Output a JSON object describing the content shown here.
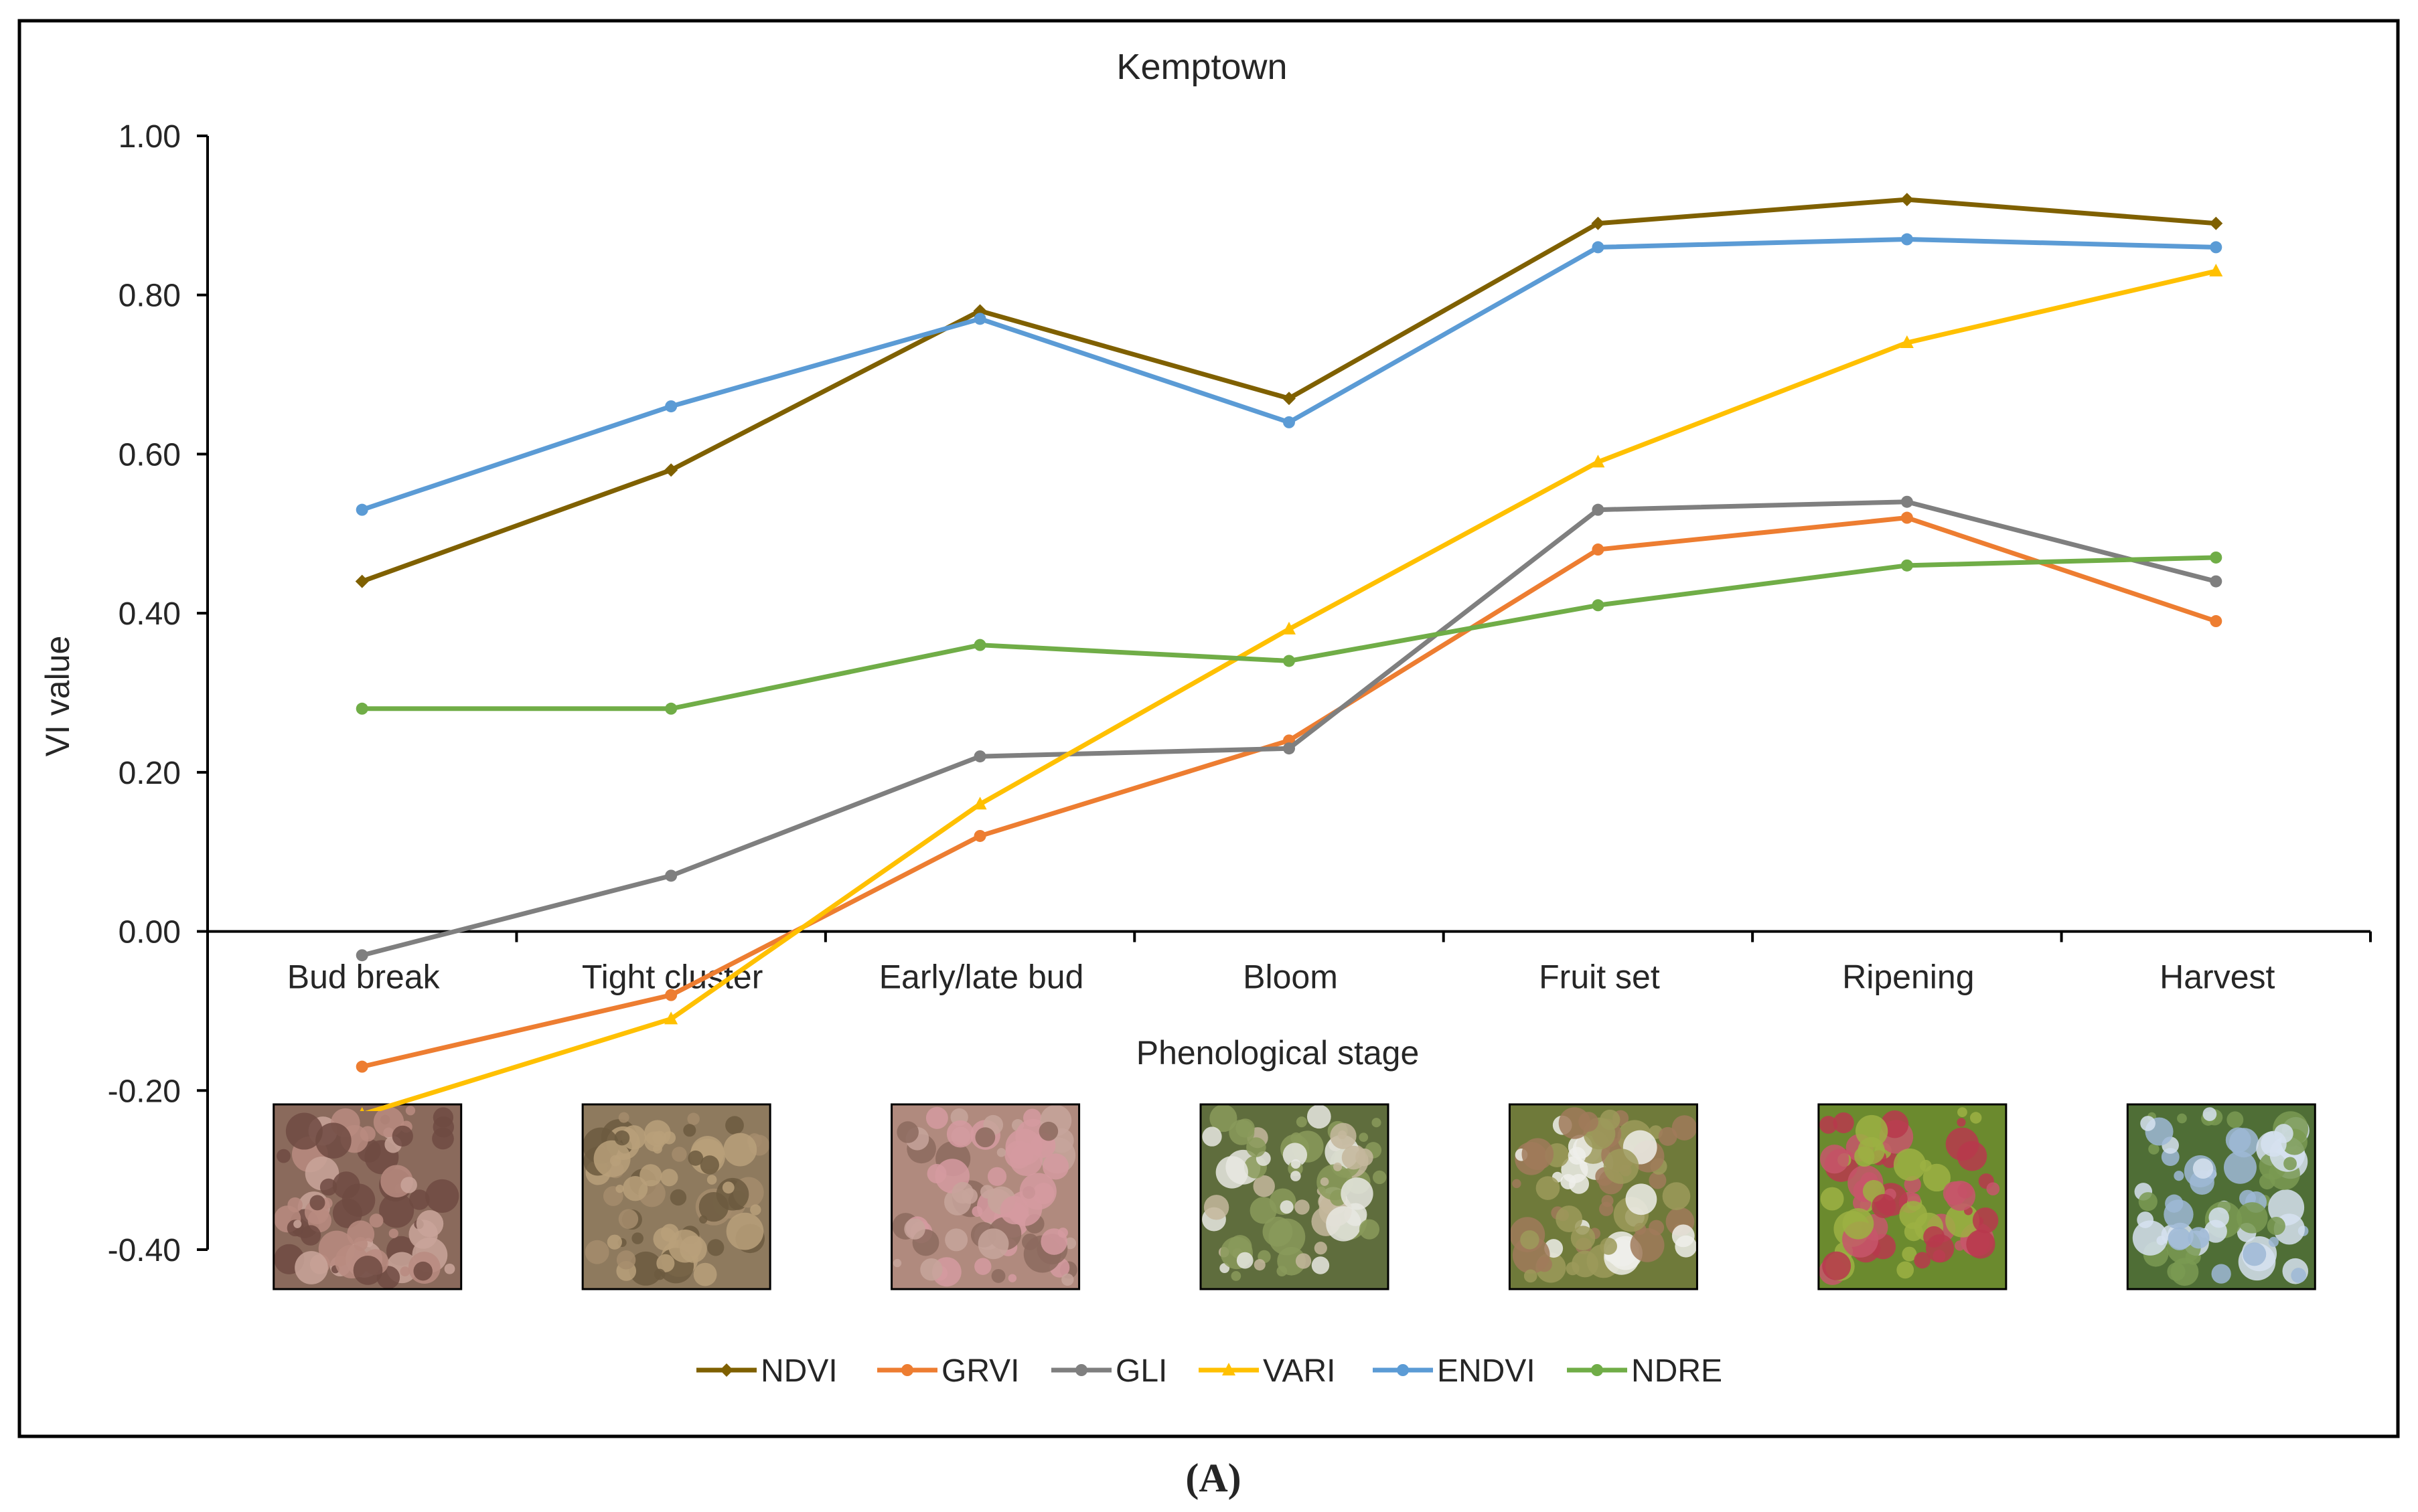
{
  "chart_data": {
    "type": "line",
    "title": "Kemptown",
    "xlabel": "Phenological stage",
    "ylabel": "VI value",
    "ylim": [
      -0.4,
      1.0
    ],
    "yticks": [
      -0.4,
      -0.2,
      0.0,
      0.2,
      0.4,
      0.6,
      0.8,
      1.0
    ],
    "ytick_labels": [
      "-0.40",
      "-0.20",
      "0.00",
      "0.20",
      "0.40",
      "0.60",
      "0.80",
      "1.00"
    ],
    "grid": false,
    "legend_position": "bottom",
    "categories": [
      "Bud break",
      "Tight cluster",
      "Early/late bud",
      "Bloom",
      "Fruit set",
      "Ripening",
      "Harvest"
    ],
    "series": [
      {
        "name": "NDVI",
        "color": "#7f6000",
        "marker": "diamond",
        "values": [
          0.44,
          0.58,
          0.78,
          0.67,
          0.89,
          0.92,
          0.89
        ]
      },
      {
        "name": "GRVI",
        "color": "#ed7d31",
        "marker": "circle",
        "values": [
          -0.17,
          -0.08,
          0.12,
          0.24,
          0.48,
          0.52,
          0.39
        ]
      },
      {
        "name": "GLI",
        "color": "#7f7f7f",
        "marker": "circle",
        "values": [
          -0.03,
          0.07,
          0.22,
          0.23,
          0.53,
          0.54,
          0.44
        ]
      },
      {
        "name": "VARI",
        "color": "#ffc000",
        "marker": "triangle",
        "values": [
          -0.23,
          -0.11,
          0.16,
          0.38,
          0.59,
          0.74,
          0.83
        ]
      },
      {
        "name": "ENDVI",
        "color": "#5b9bd5",
        "marker": "circle",
        "values": [
          0.53,
          0.66,
          0.77,
          0.64,
          0.86,
          0.87,
          0.86
        ]
      },
      {
        "name": "NDRE",
        "color": "#70ad47",
        "marker": "circle",
        "values": [
          0.28,
          0.28,
          0.36,
          0.34,
          0.41,
          0.46,
          0.47
        ]
      }
    ],
    "stage_photos": [
      {
        "stage": "Bud break",
        "palette": [
          "#8a6a5c",
          "#b98b80",
          "#6e4a42",
          "#c9a49a"
        ]
      },
      {
        "stage": "Tight cluster",
        "palette": [
          "#8e7a5e",
          "#a48c6c",
          "#6c5a40",
          "#b9a07a"
        ]
      },
      {
        "stage": "Early/late bud",
        "palette": [
          "#b08a7e",
          "#d59aa0",
          "#8c6a5e",
          "#c7a59b"
        ]
      },
      {
        "stage": "Bloom",
        "palette": [
          "#5f6d3d",
          "#e8e8e2",
          "#8a9a5a",
          "#c4b79c"
        ]
      },
      {
        "stage": "Fruit set",
        "palette": [
          "#6f7a3a",
          "#9c9a5a",
          "#eeeeea",
          "#a07a5a"
        ]
      },
      {
        "stage": "Ripening",
        "palette": [
          "#6b8a2e",
          "#b7384c",
          "#9cb043",
          "#c7566b"
        ]
      },
      {
        "stage": "Harvest",
        "palette": [
          "#4f6e36",
          "#d6e2f0",
          "#7a9a52",
          "#9eb8d6"
        ]
      }
    ]
  },
  "caption": "(A)"
}
